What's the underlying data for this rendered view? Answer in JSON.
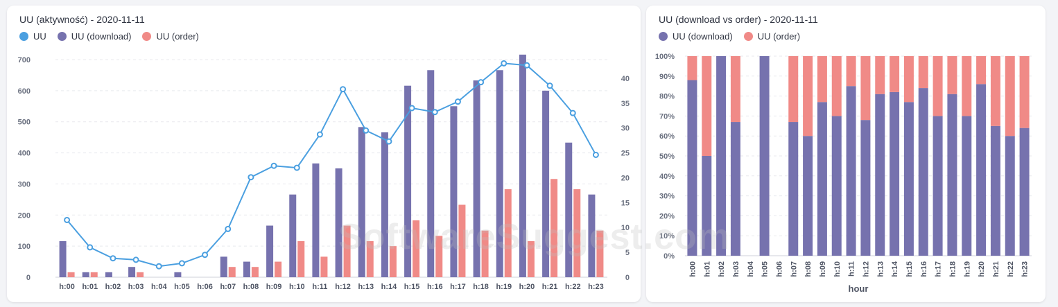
{
  "colors": {
    "uu": "#4a9fe0",
    "download": "#7672ae",
    "order": "#f08a87",
    "grid": "#e8e9ee"
  },
  "left": {
    "title": "UU (aktywność) - 2020-11-11",
    "legend": [
      {
        "label": "UU",
        "color": "#4a9fe0"
      },
      {
        "label": "UU (download)",
        "color": "#7672ae"
      },
      {
        "label": "UU (order)",
        "color": "#f08a87"
      }
    ]
  },
  "right": {
    "title": "UU (download vs order) - 2020-11-11",
    "legend": [
      {
        "label": "UU (download)",
        "color": "#7672ae"
      },
      {
        "label": "UU (order)",
        "color": "#f08a87"
      }
    ]
  },
  "watermark": "SoftwareSuggest.com",
  "chart_data": [
    {
      "type": "bar",
      "title": "UU (aktywność) - 2020-11-11",
      "categories": [
        "h:00",
        "h:01",
        "h:02",
        "h:03",
        "h:04",
        "h:05",
        "h:06",
        "h:07",
        "h:08",
        "h:09",
        "h:10",
        "h:11",
        "h:12",
        "h:13",
        "h:14",
        "h:15",
        "h:16",
        "h:17",
        "h:18",
        "h:19",
        "h:20",
        "h:21",
        "h:22",
        "h:23"
      ],
      "series": [
        {
          "name": "UU (download)",
          "kind": "bar",
          "axis": "left",
          "values": [
            116,
            16,
            16,
            33,
            0,
            16,
            0,
            66,
            50,
            166,
            266,
            366,
            350,
            483,
            466,
            616,
            666,
            550,
            633,
            666,
            716,
            600,
            433,
            266
          ]
        },
        {
          "name": "UU (order)",
          "kind": "bar",
          "axis": "left",
          "values": [
            16,
            16,
            0,
            16,
            0,
            0,
            0,
            33,
            33,
            50,
            116,
            66,
            166,
            116,
            100,
            183,
            133,
            233,
            150,
            283,
            116,
            316,
            283,
            150
          ]
        },
        {
          "name": "UU",
          "kind": "line",
          "axis": "right",
          "values": [
            11.5,
            6,
            3.8,
            3.5,
            2.2,
            2.8,
            4.5,
            9.7,
            20.1,
            22.4,
            22,
            28.7,
            37.8,
            29.5,
            27.3,
            34,
            33.2,
            35.3,
            39.2,
            43,
            42.6,
            38.5,
            33,
            24.6
          ]
        }
      ],
      "ylim_left": [
        0,
        700
      ],
      "yticks_left": [
        0,
        100,
        200,
        300,
        400,
        500,
        600,
        700
      ],
      "ylim_right": [
        0,
        43.75
      ],
      "yticks_right": [
        0,
        5,
        10,
        15,
        20,
        25,
        30,
        35,
        40
      ],
      "grid": true,
      "legend": "top-left"
    },
    {
      "type": "bar",
      "stacked": "percent",
      "title": "UU (download vs order) - 2020-11-11",
      "categories": [
        "h:00",
        "h:01",
        "h:02",
        "h:03",
        "h:04",
        "h:05",
        "h:06",
        "h:07",
        "h:08",
        "h:09",
        "h:10",
        "h:11",
        "h:12",
        "h:13",
        "h:14",
        "h:15",
        "h:16",
        "h:17",
        "h:18",
        "h:19",
        "h:20",
        "h:21",
        "h:22",
        "h:23"
      ],
      "series": [
        {
          "name": "UU (download)",
          "values": [
            88,
            50,
            100,
            67,
            null,
            100,
            null,
            67,
            60,
            77,
            70,
            85,
            68,
            81,
            82,
            77,
            84,
            70,
            81,
            70,
            86,
            65,
            60,
            64
          ]
        },
        {
          "name": "UU (order)",
          "values": [
            12,
            50,
            0,
            33,
            null,
            0,
            null,
            33,
            40,
            23,
            30,
            15,
            32,
            19,
            18,
            23,
            16,
            30,
            19,
            30,
            14,
            35,
            40,
            36
          ]
        }
      ],
      "ylim": [
        0,
        100
      ],
      "yticks": [
        "0%",
        "10%",
        "20%",
        "30%",
        "40%",
        "50%",
        "60%",
        "70%",
        "80%",
        "90%",
        "100%"
      ],
      "xlabel": "hour",
      "grid": true,
      "legend": "top-left"
    }
  ]
}
